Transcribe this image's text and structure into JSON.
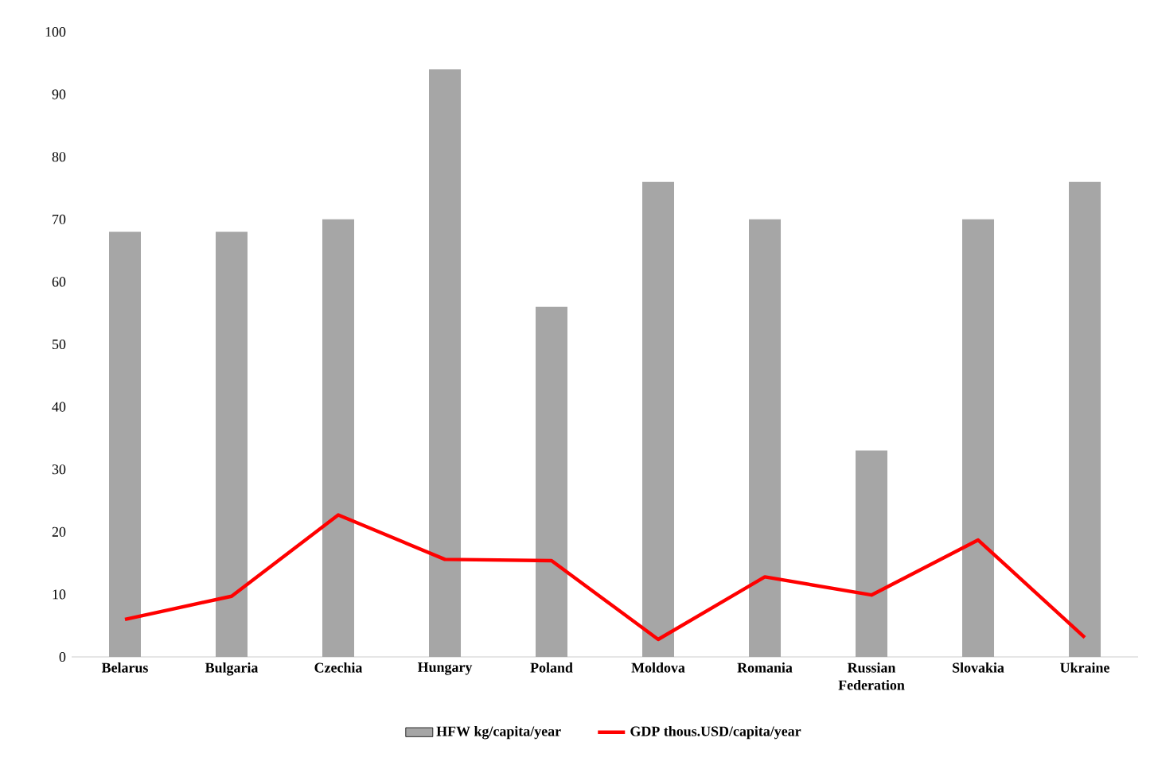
{
  "chart_data": {
    "type": "bar",
    "categories": [
      "Belarus",
      "Bulgaria",
      "Czechia",
      "Hungary",
      "Poland",
      "Moldova",
      "Romania",
      "Russian Federation",
      "Slovakia",
      "Ukraine"
    ],
    "series": [
      {
        "name": "HFW kg/capita/year",
        "color": "#a6a6a6",
        "values": [
          68,
          68,
          70,
          94,
          56,
          76,
          70,
          33,
          70,
          76
        ]
      },
      {
        "name": "GDP thous.USD/capita/year",
        "type": "line",
        "color": "#ff0000",
        "values": [
          6,
          9.7,
          22.7,
          15.6,
          15.4,
          2.8,
          12.8,
          9.9,
          18.7,
          3.1
        ]
      }
    ],
    "ylim": [
      0,
      100
    ],
    "yticks": [
      0,
      10,
      20,
      30,
      40,
      50,
      60,
      70,
      80,
      90,
      100
    ],
    "legend": "bottom"
  }
}
